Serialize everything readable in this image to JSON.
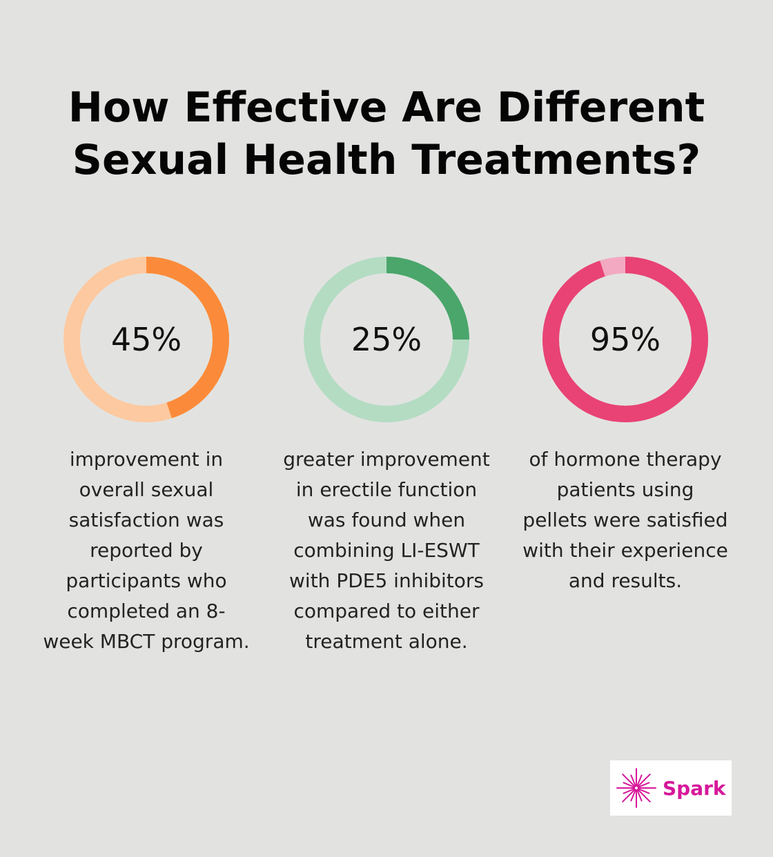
{
  "title_lines": [
    "How Effective Are Different",
    "Sexual Health Treatments?"
  ],
  "chart_data": [
    {
      "type": "pie",
      "value_percent": 45,
      "label": "45%",
      "description": "improvement in overall sexual satisfaction was reported by participants who completed an 8-week MBCT program.",
      "colors": {
        "fill": "#fb8b3a",
        "track": "#fdc9a0"
      }
    },
    {
      "type": "pie",
      "value_percent": 25,
      "label": "25%",
      "description": "greater improvement in erectile function was found when combining LI-ESWT with PDE5 inhibitors compared to either treatment alone.",
      "colors": {
        "fill": "#4ba66b",
        "track": "#b4dcc3"
      }
    },
    {
      "type": "pie",
      "value_percent": 95,
      "label": "95%",
      "description": "of hormone therapy patients using pellets were satisfied with their experience and results.",
      "colors": {
        "fill": "#e84374",
        "track": "#f3a9c1"
      }
    }
  ],
  "logo": {
    "text": "Spark",
    "color": "#d6189a",
    "icon": "spark-burst-icon"
  }
}
